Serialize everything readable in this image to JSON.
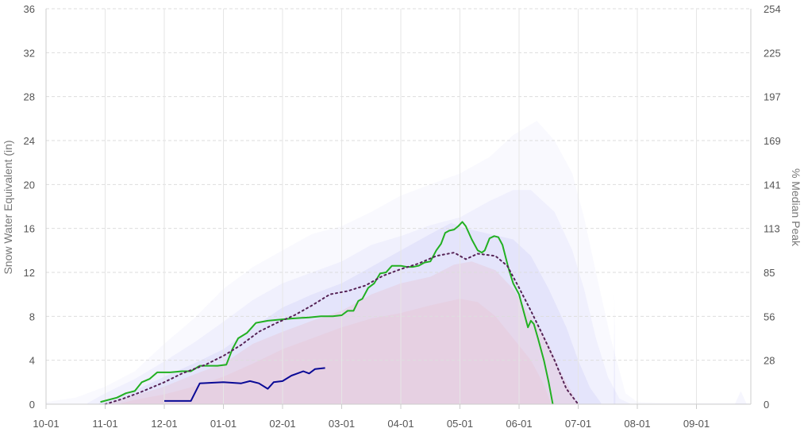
{
  "chart_data": {
    "type": "area",
    "x_categories": [
      "10-01",
      "11-01",
      "12-01",
      "01-01",
      "02-01",
      "03-01",
      "04-01",
      "05-01",
      "06-01",
      "07-01",
      "08-01",
      "09-01"
    ],
    "y_left": {
      "label": "Snow Water Equivalent (in)",
      "ylim": [
        0,
        36
      ],
      "ticks": [
        "0",
        "4",
        "8",
        "12",
        "16",
        "20",
        "24",
        "28",
        "32",
        "36"
      ]
    },
    "y_right": {
      "label": "% Median Peak",
      "ticks": [
        "0",
        "28",
        "56",
        "85",
        "113",
        "141",
        "169",
        "197",
        "225",
        "254"
      ]
    },
    "grid": true,
    "colors": {
      "current": "#0a0a96",
      "green": "#22b022",
      "median": "#552255",
      "band_blue": "#6a6ae6",
      "band_red": "#f08080"
    },
    "series": [
      {
        "values": [
          [
            2.0,
            0.3
          ],
          [
            2.45,
            0.3
          ],
          [
            2.6,
            1.9
          ],
          [
            3.0,
            2.0
          ],
          [
            3.3,
            1.9
          ],
          [
            3.45,
            2.1
          ],
          [
            3.6,
            1.9
          ],
          [
            3.75,
            1.4
          ],
          [
            3.85,
            2.0
          ],
          [
            4.0,
            2.1
          ],
          [
            4.15,
            2.6
          ],
          [
            4.25,
            2.8
          ],
          [
            4.35,
            3.0
          ],
          [
            4.45,
            2.8
          ],
          [
            4.55,
            3.2
          ],
          [
            4.72,
            3.3
          ]
        ]
      },
      {
        "values": [
          [
            0.92,
            0.2
          ],
          [
            1.2,
            0.6
          ],
          [
            1.35,
            1.0
          ],
          [
            1.5,
            1.2
          ],
          [
            1.62,
            2.0
          ],
          [
            1.75,
            2.3
          ],
          [
            1.88,
            2.9
          ],
          [
            2.1,
            2.9
          ],
          [
            2.3,
            3.0
          ],
          [
            2.45,
            3.0
          ],
          [
            2.6,
            3.5
          ],
          [
            2.9,
            3.5
          ],
          [
            3.05,
            3.6
          ],
          [
            3.15,
            5.0
          ],
          [
            3.25,
            6.0
          ],
          [
            3.4,
            6.5
          ],
          [
            3.55,
            7.4
          ],
          [
            3.75,
            7.6
          ],
          [
            3.95,
            7.7
          ],
          [
            4.15,
            7.8
          ],
          [
            4.45,
            7.9
          ],
          [
            4.65,
            8.0
          ],
          [
            4.85,
            8.0
          ],
          [
            5.0,
            8.1
          ],
          [
            5.1,
            8.5
          ],
          [
            5.2,
            8.5
          ],
          [
            5.28,
            9.4
          ],
          [
            5.35,
            9.6
          ],
          [
            5.45,
            10.6
          ],
          [
            5.55,
            11.0
          ],
          [
            5.65,
            11.9
          ],
          [
            5.75,
            12.0
          ],
          [
            5.85,
            12.6
          ],
          [
            6.0,
            12.6
          ],
          [
            6.1,
            12.5
          ],
          [
            6.2,
            12.5
          ],
          [
            6.3,
            12.6
          ],
          [
            6.4,
            12.9
          ],
          [
            6.5,
            13.0
          ],
          [
            6.55,
            13.5
          ],
          [
            6.6,
            14.0
          ],
          [
            6.68,
            14.6
          ],
          [
            6.75,
            15.6
          ],
          [
            6.82,
            15.8
          ],
          [
            6.9,
            15.9
          ],
          [
            6.97,
            16.2
          ],
          [
            7.04,
            16.6
          ],
          [
            7.1,
            16.2
          ],
          [
            7.2,
            15.0
          ],
          [
            7.3,
            14.0
          ],
          [
            7.37,
            13.8
          ],
          [
            7.42,
            14.0
          ],
          [
            7.5,
            15.1
          ],
          [
            7.58,
            15.3
          ],
          [
            7.65,
            15.2
          ],
          [
            7.72,
            14.5
          ],
          [
            7.82,
            12.4
          ],
          [
            7.9,
            11.0
          ],
          [
            8.0,
            10.0
          ],
          [
            8.05,
            9.0
          ],
          [
            8.1,
            8.0
          ],
          [
            8.15,
            7.0
          ],
          [
            8.2,
            7.6
          ],
          [
            8.25,
            7.3
          ],
          [
            8.32,
            6.0
          ],
          [
            8.42,
            4.0
          ],
          [
            8.5,
            2.0
          ],
          [
            8.57,
            0.0
          ]
        ]
      },
      {
        "values": [
          [
            1.0,
            0.0
          ],
          [
            1.3,
            0.5
          ],
          [
            1.6,
            1.1
          ],
          [
            2.0,
            2.0
          ],
          [
            2.3,
            2.8
          ],
          [
            2.7,
            3.6
          ],
          [
            3.0,
            4.4
          ],
          [
            3.3,
            5.4
          ],
          [
            3.6,
            6.6
          ],
          [
            3.9,
            7.4
          ],
          [
            4.2,
            8.1
          ],
          [
            4.5,
            9.0
          ],
          [
            4.8,
            10.0
          ],
          [
            5.1,
            10.3
          ],
          [
            5.4,
            10.8
          ],
          [
            5.7,
            11.7
          ],
          [
            6.0,
            12.3
          ],
          [
            6.3,
            12.8
          ],
          [
            6.6,
            13.5
          ],
          [
            6.9,
            13.8
          ],
          [
            7.1,
            13.2
          ],
          [
            7.3,
            13.7
          ],
          [
            7.6,
            13.5
          ],
          [
            7.8,
            12.6
          ],
          [
            8.0,
            10.6
          ],
          [
            8.2,
            8.5
          ],
          [
            8.4,
            6.3
          ],
          [
            8.6,
            4.0
          ],
          [
            8.8,
            1.4
          ],
          [
            9.0,
            0.0
          ]
        ]
      }
    ]
  }
}
